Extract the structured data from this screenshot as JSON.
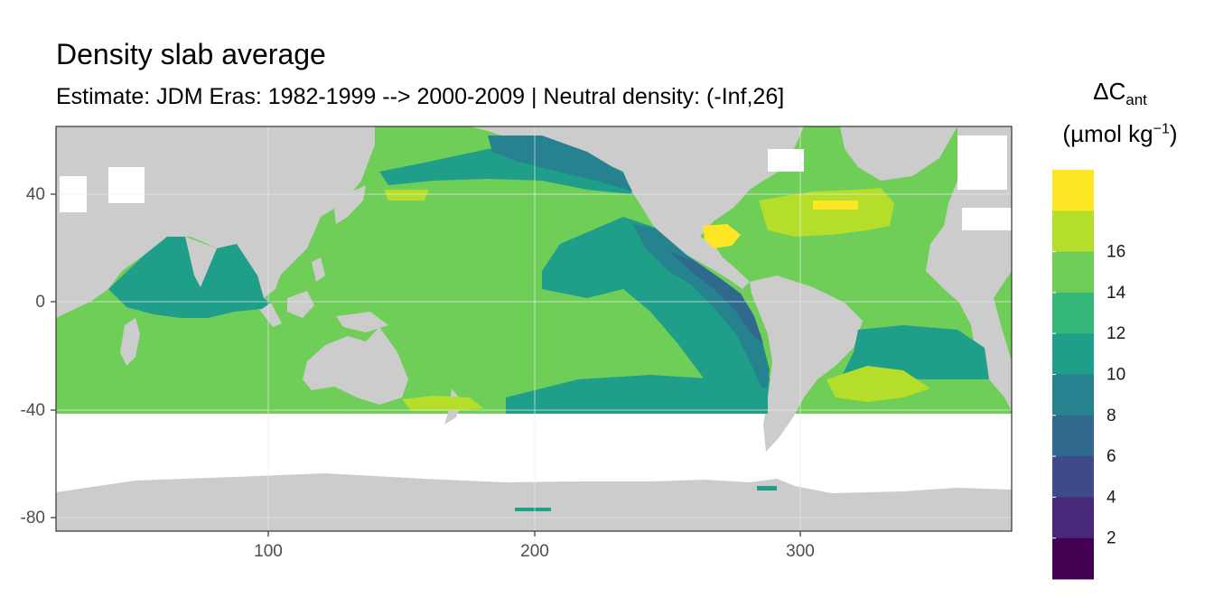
{
  "chart_data": {
    "type": "heatmap",
    "title": "Density slab average",
    "subtitle": "Estimate: JDM Eras: 1982-1999 --> 2000-2009 | Neutral density: (-Inf,26]",
    "x_ticks": [
      100,
      200,
      300
    ],
    "y_ticks": [
      40,
      0,
      -40,
      -80
    ],
    "xlim": [
      20,
      380
    ],
    "ylim": [
      -85,
      65
    ],
    "grid": true,
    "land_color": "#cccccc",
    "no_data_color": "#ffffff",
    "legend": {
      "title_main": "ΔC",
      "title_sub": "ant",
      "unit_main": "(µmol kg",
      "unit_sup": "−1",
      "unit_close": ")",
      "placement": "right",
      "breaks": [
        2,
        4,
        6,
        8,
        10,
        12,
        14,
        16
      ],
      "colors": [
        "#440154",
        "#482878",
        "#3e4a89",
        "#31688e",
        "#26828e",
        "#1f9e89",
        "#35b779",
        "#6ece58",
        "#b5de2b",
        "#fde725"
      ]
    }
  }
}
